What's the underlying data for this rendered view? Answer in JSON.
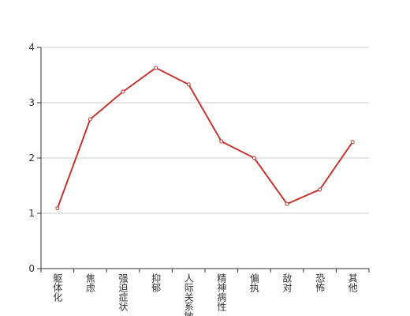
{
  "chart_data": {
    "type": "line",
    "categories": [
      "躯体化",
      "焦虑",
      "强迫症状",
      "抑郁",
      "人际关系敏感",
      "精神病性",
      "偏执",
      "敌对",
      "恐怖",
      "其他"
    ],
    "values": [
      1.09,
      2.7,
      3.2,
      3.63,
      3.33,
      2.3,
      2.0,
      1.17,
      1.43,
      2.29
    ],
    "color": "#c23531",
    "ylim": [
      0,
      4
    ],
    "yticks": [
      0,
      1,
      2,
      3,
      4
    ],
    "grid": true
  }
}
